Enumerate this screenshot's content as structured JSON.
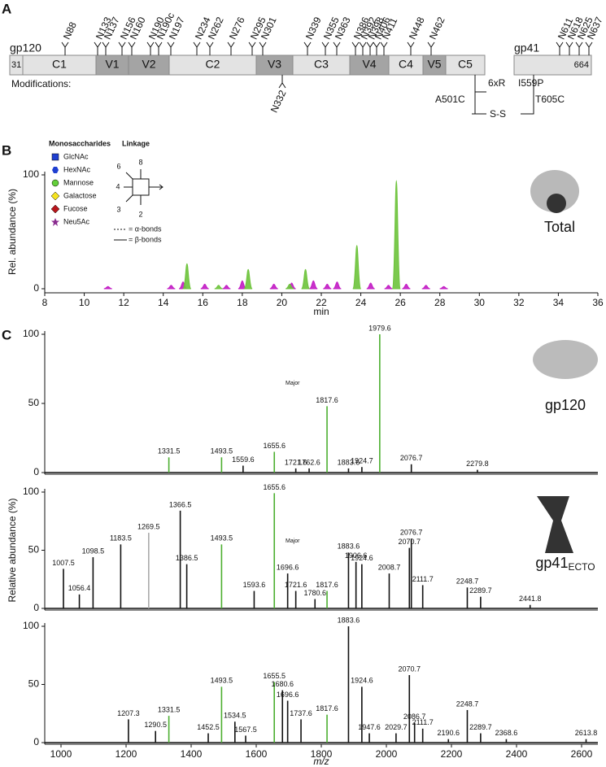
{
  "panels": [
    "A",
    "B",
    "C"
  ],
  "diagram": {
    "gp120": {
      "name": "gp120",
      "start": "31",
      "regions": [
        "C1",
        "V1",
        "V2",
        "C2",
        "V3",
        "C3",
        "V4",
        "C4",
        "V5",
        "C5"
      ],
      "sites": [
        "N88",
        "N133",
        "N137",
        "N156",
        "N160",
        "N190",
        "N190c",
        "N197",
        "N234",
        "N262",
        "N276",
        "N295",
        "N301",
        "N339",
        "N355",
        "N363",
        "N386",
        "N392",
        "N398",
        "N406",
        "N411",
        "N448",
        "N462"
      ]
    },
    "gp41": {
      "name": "gp41",
      "end": "664",
      "sites": [
        "N611",
        "N618",
        "N625",
        "N637"
      ]
    },
    "modifications": {
      "label": "Modifications:",
      "added_site": "N332",
      "furin": "6xR",
      "sos_left": "A501C",
      "sos_bond": "S-S",
      "sos_right": "T605C",
      "ip": "I559P"
    }
  },
  "chart_data": [
    {
      "type": "area",
      "ylabel": "Rel. abundance (%)",
      "xlabel": "min",
      "label": "Total",
      "xlim": [
        8,
        36
      ],
      "xticks": [
        8,
        10,
        12,
        14,
        16,
        18,
        20,
        22,
        24,
        26,
        28,
        30,
        32,
        34,
        36
      ],
      "ylim": [
        0,
        100
      ],
      "yticks": [
        0,
        100
      ],
      "legend": {
        "title": "Monosaccharides",
        "items": [
          {
            "name": "GlcNAc",
            "color": "#1f3fd0"
          },
          {
            "name": "HexNAc",
            "color": "#1f3fd0"
          },
          {
            "name": "Mannose",
            "color": "#63cf3a"
          },
          {
            "name": "Galactose",
            "color": "#f5e31f"
          },
          {
            "name": "Fucose",
            "color": "#b8161c"
          },
          {
            "name": "Neu5Ac",
            "color": "#8a2b8f"
          }
        ],
        "linkage_title": "Linkage",
        "positions": [
          "8",
          "6",
          "4",
          "3",
          "2"
        ],
        "alpha": "= α-bonds",
        "beta": "= β-bonds"
      },
      "series": [
        {
          "color": "#c21bc4",
          "x": [
            11.2,
            14.4,
            15.0,
            16.1,
            17.2,
            18.0,
            19.6,
            20.5,
            21.6,
            22.3,
            22.8,
            24.5,
            25.4,
            26.3,
            27.3,
            28.2
          ],
          "values": [
            2,
            3,
            6,
            4,
            3,
            7,
            4,
            5,
            7,
            4,
            6,
            5,
            3,
            4,
            3,
            2
          ]
        },
        {
          "color": "#6dc33b",
          "x": [
            15.2,
            16.8,
            18.3,
            20.4,
            21.2,
            23.8,
            25.8
          ],
          "values": [
            22,
            3,
            17,
            4,
            17,
            38,
            95
          ]
        }
      ]
    },
    {
      "type": "spectrum",
      "label": "gp120",
      "xlim": [
        950,
        2650
      ],
      "ylim": [
        0,
        100
      ],
      "yticks": [
        0,
        50,
        100
      ],
      "annotations": [
        "Major"
      ],
      "x": [
        1331.5,
        1493.5,
        1559.6,
        1655.6,
        1721.6,
        1762.6,
        1817.6,
        1883.6,
        1924.7,
        1979.6,
        2076.7,
        2279.8
      ],
      "values": [
        11,
        11,
        5,
        15,
        3,
        3,
        48,
        3,
        4,
        100,
        6,
        2
      ],
      "colors": [
        "#4caf30",
        "#4caf30",
        "#111",
        "#4caf30",
        "#111",
        "#111",
        "#4caf30",
        "#111",
        "#111",
        "#4caf30",
        "#111",
        "#111"
      ]
    },
    {
      "type": "spectrum",
      "label": "gp41",
      "label_sub": "ECTO",
      "ylabel": "Relative abundance (%)",
      "xlim": [
        950,
        2650
      ],
      "ylim": [
        0,
        100
      ],
      "yticks": [
        0,
        50,
        100
      ],
      "annotations": [
        "Major"
      ],
      "x": [
        1007.5,
        1056.4,
        1098.5,
        1183.5,
        1269.5,
        1366.5,
        1386.5,
        1493.5,
        1593.6,
        1655.6,
        1696.6,
        1721.6,
        1780.6,
        1817.6,
        1883.6,
        1906.6,
        1924.6,
        2008.7,
        2070.7,
        2076.7,
        2111.7,
        2248.7,
        2289.7,
        2441.8
      ],
      "values": [
        34,
        12,
        44,
        55,
        65,
        84,
        38,
        55,
        15,
        99,
        30,
        15,
        8,
        15,
        48,
        40,
        38,
        30,
        52,
        60,
        20,
        18,
        10,
        3
      ],
      "colors": [
        "#111",
        "#111",
        "#111",
        "#111",
        "#aaa",
        "#111",
        "#111",
        "#4caf30",
        "#111",
        "#4caf30",
        "#111",
        "#111",
        "#111",
        "#4caf30",
        "#111",
        "#111",
        "#111",
        "#111",
        "#111",
        "#111",
        "#111",
        "#111",
        "#111",
        "#111"
      ]
    },
    {
      "type": "spectrum",
      "xlabel": "m/z",
      "xlim": [
        950,
        2650
      ],
      "xticks": [
        1000,
        1200,
        1400,
        1600,
        1800,
        2000,
        2200,
        2400,
        2600
      ],
      "ylim": [
        0,
        100
      ],
      "yticks": [
        0,
        50,
        100
      ],
      "x": [
        1207.3,
        1290.5,
        1331.5,
        1452.5,
        1493.5,
        1534.5,
        1567.5,
        1655.5,
        1680.6,
        1696.6,
        1737.6,
        1817.6,
        1883.6,
        1924.6,
        1947.6,
        2029.7,
        2070.7,
        2086.7,
        2111.7,
        2190.6,
        2248.7,
        2289.7,
        2368.6,
        2613.8
      ],
      "values": [
        20,
        10,
        23,
        8,
        48,
        18,
        6,
        52,
        45,
        36,
        20,
        24,
        100,
        48,
        8,
        8,
        58,
        17,
        12,
        3,
        28,
        8,
        3,
        3
      ],
      "colors": [
        "#111",
        "#111",
        "#4caf30",
        "#111",
        "#4caf30",
        "#111",
        "#111",
        "#4caf30",
        "#111",
        "#111",
        "#111",
        "#4caf30",
        "#111",
        "#111",
        "#111",
        "#111",
        "#111",
        "#111",
        "#111",
        "#111",
        "#111",
        "#111",
        "#111",
        "#111"
      ]
    }
  ]
}
